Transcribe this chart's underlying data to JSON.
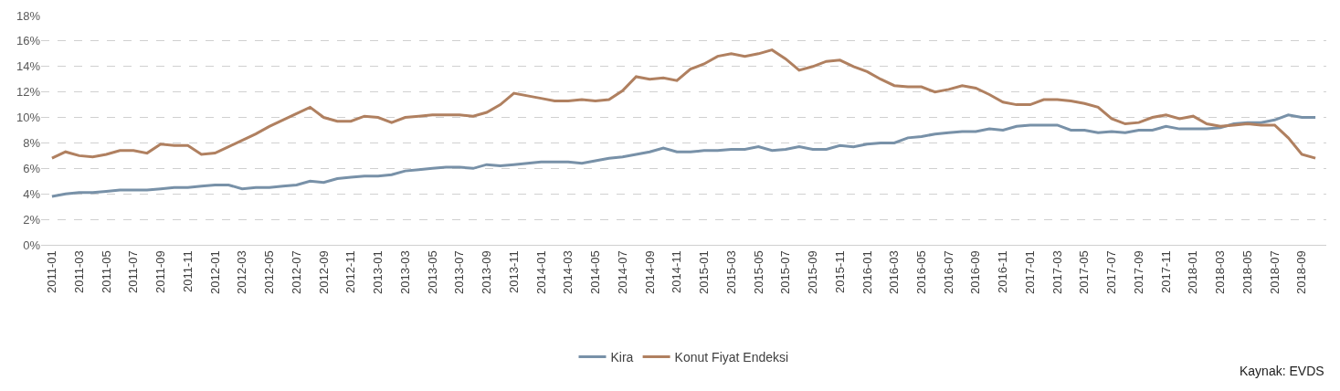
{
  "chart_data": {
    "type": "line",
    "categories": [
      "2011-01",
      null,
      "2011-03",
      null,
      "2011-05",
      null,
      "2011-07",
      null,
      "2011-09",
      null,
      "2011-11",
      null,
      "2012-01",
      null,
      "2012-03",
      null,
      "2012-05",
      null,
      "2012-07",
      null,
      "2012-09",
      null,
      "2012-11",
      null,
      "2013-01",
      null,
      "2013-03",
      null,
      "2013-05",
      null,
      "2013-07",
      null,
      "2013-09",
      null,
      "2013-11",
      null,
      "2014-01",
      null,
      "2014-03",
      null,
      "2014-05",
      null,
      "2014-07",
      null,
      "2014-09",
      null,
      "2014-11",
      null,
      "2015-01",
      null,
      "2015-03",
      null,
      "2015-05",
      null,
      "2015-07",
      null,
      "2015-09",
      null,
      "2015-11",
      null,
      "2016-01",
      null,
      "2016-03",
      null,
      "2016-05",
      null,
      "2016-07",
      null,
      "2016-09",
      null,
      "2016-11",
      null,
      "2017-01",
      null,
      "2017-03",
      null,
      "2017-05",
      null,
      "2017-07",
      null,
      "2017-09",
      null,
      "2017-11",
      null,
      "2018-01",
      null,
      "2018-03",
      null,
      "2018-05",
      null,
      "2018-07",
      null,
      "2018-09",
      null
    ],
    "series": [
      {
        "name": "Kira",
        "color": "#7891a8",
        "values": [
          3.8,
          4.0,
          4.1,
          4.1,
          4.2,
          4.3,
          4.3,
          4.3,
          4.4,
          4.5,
          4.5,
          4.6,
          4.7,
          4.7,
          4.4,
          4.5,
          4.5,
          4.6,
          4.7,
          5.0,
          4.9,
          5.2,
          5.3,
          5.4,
          5.4,
          5.5,
          5.8,
          5.9,
          6.0,
          6.1,
          6.1,
          6.0,
          6.3,
          6.2,
          6.3,
          6.4,
          6.5,
          6.5,
          6.5,
          6.4,
          6.6,
          6.8,
          6.9,
          7.1,
          7.3,
          7.6,
          7.3,
          7.3,
          7.4,
          7.4,
          7.5,
          7.5,
          7.7,
          7.4,
          7.5,
          7.7,
          7.5,
          7.5,
          7.8,
          7.7,
          7.9,
          8.0,
          8.0,
          8.4,
          8.5,
          8.7,
          8.8,
          8.9,
          8.9,
          9.1,
          9.0,
          9.3,
          9.4,
          9.4,
          9.4,
          9.0,
          9.0,
          8.8,
          8.9,
          8.8,
          9.0,
          9.0,
          9.3,
          9.1,
          9.1,
          9.1,
          9.2,
          9.5,
          9.6,
          9.6,
          9.8,
          10.2,
          10.0,
          10.0
        ]
      },
      {
        "name": "Konut Fiyat Endeksi",
        "color": "#b08060",
        "values": [
          6.8,
          7.3,
          7.0,
          6.9,
          7.1,
          7.4,
          7.4,
          7.2,
          7.9,
          7.8,
          7.8,
          7.1,
          7.2,
          7.7,
          8.2,
          8.7,
          9.3,
          9.8,
          10.3,
          10.8,
          10.0,
          9.7,
          9.7,
          10.1,
          10.0,
          9.6,
          10.0,
          10.1,
          10.2,
          10.2,
          10.2,
          10.1,
          10.4,
          11.0,
          11.9,
          11.7,
          11.5,
          11.3,
          11.3,
          11.4,
          11.3,
          11.4,
          12.1,
          13.2,
          13.0,
          13.1,
          12.9,
          13.8,
          14.2,
          14.8,
          15.0,
          14.8,
          15.0,
          15.3,
          14.6,
          13.7,
          14.0,
          14.4,
          14.5,
          14.0,
          13.6,
          13.0,
          12.5,
          12.4,
          12.4,
          12.0,
          12.2,
          12.5,
          12.3,
          11.8,
          11.2,
          11.0,
          11.0,
          11.4,
          11.4,
          11.3,
          11.1,
          10.8,
          9.9,
          9.5,
          9.6,
          10.0,
          10.2,
          9.9,
          10.1,
          9.5,
          9.3,
          9.4,
          9.5,
          9.4,
          9.4,
          8.4,
          7.1,
          6.8
        ]
      }
    ],
    "ylim": [
      0,
      18
    ],
    "yticks": [
      {
        "value": 0,
        "label": "0%"
      },
      {
        "value": 2,
        "label": "2%"
      },
      {
        "value": 4,
        "label": "4%"
      },
      {
        "value": 6,
        "label": "6%"
      },
      {
        "value": 8,
        "label": "8%"
      },
      {
        "value": 10,
        "label": "10%"
      },
      {
        "value": 12,
        "label": "12%"
      },
      {
        "value": 14,
        "label": "14%"
      },
      {
        "value": 16,
        "label": "16%"
      },
      {
        "value": 18,
        "label": "18%"
      }
    ],
    "grid": "y",
    "legend": "bottom",
    "marker": "none",
    "line_style": "solid",
    "annotations": [
      "Kaynak: EVDS"
    ]
  }
}
